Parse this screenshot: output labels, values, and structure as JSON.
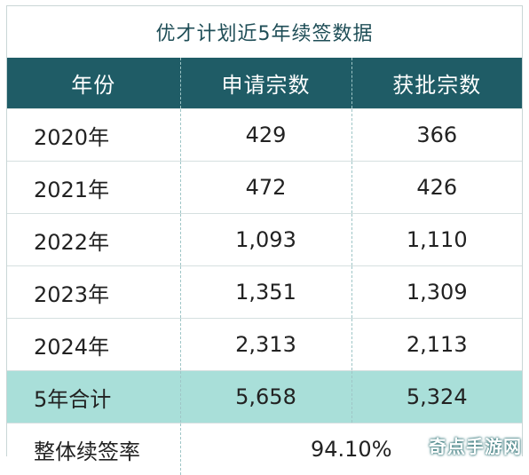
{
  "title": "优才计划近5年续签数据",
  "headers": [
    "年份",
    "申请宗数",
    "获批宗数"
  ],
  "rows": [
    {
      "year": "2020年",
      "applied": "429",
      "approved": "366"
    },
    {
      "year": "2021年",
      "applied": "472",
      "approved": "426"
    },
    {
      "year": "2022年",
      "applied": "1,093",
      "approved": "1,110"
    },
    {
      "year": "2023年",
      "applied": "1,351",
      "approved": "1,309"
    },
    {
      "year": "2024年",
      "applied": "2,313",
      "approved": "2,113"
    }
  ],
  "total": {
    "label": "5年合计",
    "applied": "5,658",
    "approved": "5,324"
  },
  "rate": {
    "label": "整体续签率",
    "value": "94.10%"
  },
  "watermark": "奇点手游网",
  "colors": {
    "header_bg": "#1f5c66",
    "total_bg": "#a9dfd9",
    "title_text": "#1f4e57"
  }
}
